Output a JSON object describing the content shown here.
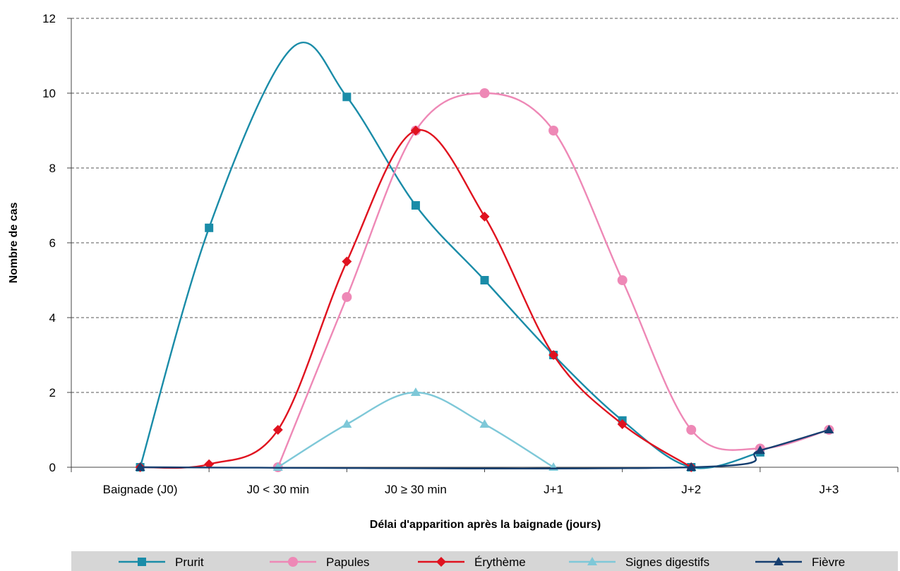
{
  "chart_data": {
    "type": "line",
    "smoothed": true,
    "xlabel": "Délai d'apparition après la baignade (jours)",
    "ylabel": "Nombre de cas",
    "categories": [
      "Baignade (J0)",
      "J0 < 30 min",
      "J0 ≥ 30 min",
      "J+1",
      "J+2",
      "J+3"
    ],
    "x_ticks": [
      0,
      1,
      2,
      3,
      4,
      5,
      6
    ],
    "ylim": [
      0,
      12
    ],
    "y_ticks": [
      0,
      2,
      4,
      6,
      8,
      10,
      12
    ],
    "grid": "horizontal-dashed",
    "legend_position": "bottom",
    "series": [
      {
        "name": "Prurit",
        "color": "#1a8ca8",
        "marker": "square",
        "x": [
          0.5,
          1,
          1.6,
          2,
          2.5,
          3,
          3.5,
          4,
          4.5,
          5
        ],
        "y": [
          0,
          6.4,
          11.2,
          9.9,
          7,
          5,
          3,
          1.25,
          0,
          0.4
        ]
      },
      {
        "name": "Papules",
        "color": "#ee88b6",
        "marker": "circle",
        "x": [
          1.5,
          2,
          2.5,
          3,
          3.5,
          4,
          4.5,
          5,
          5.5
        ],
        "y": [
          0,
          4.55,
          9,
          10,
          9,
          5,
          1,
          0.5,
          1
        ]
      },
      {
        "name": "Érythème",
        "color": "#e0121f",
        "marker": "diamond",
        "x": [
          0.5,
          1,
          1.5,
          2,
          2.5,
          3,
          3.5,
          4,
          4.5
        ],
        "y": [
          0,
          0.08,
          1,
          5.5,
          9,
          6.7,
          3,
          1.15,
          0
        ]
      },
      {
        "name": "Signes digestifs",
        "color": "#7ec8d8",
        "marker": "triangle",
        "x": [
          1.5,
          2,
          2.5,
          3,
          3.5
        ],
        "y": [
          0,
          1.15,
          2,
          1.15,
          0
        ]
      },
      {
        "name": "Fièvre",
        "color": "#163f70",
        "marker": "triangle",
        "x": [
          0.5,
          4.5,
          5,
          5.5
        ],
        "y": [
          0,
          0,
          0.45,
          1
        ]
      }
    ]
  }
}
